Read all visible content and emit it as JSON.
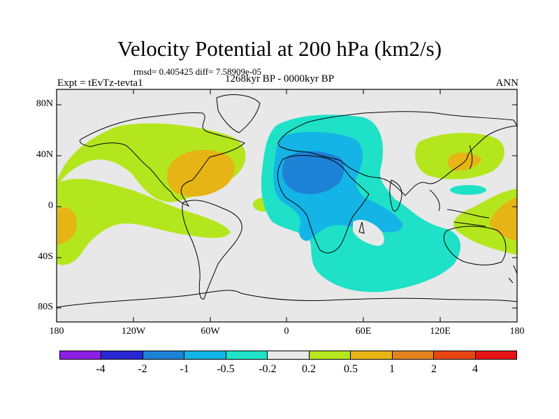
{
  "title": "Velocity Potential at 200 hPa (km2/s)",
  "stats": "rmsd= 0.405425 diff= 7.58909e-05",
  "experiment": "Expt = tEvTz-tevta1",
  "period": "1268kyr BP - 0000kyr BP",
  "season": "ANN",
  "y_ticks": [
    "80N",
    "40N",
    "0",
    "40S",
    "80S"
  ],
  "x_ticks": [
    "180",
    "120W",
    "60W",
    "0",
    "60E",
    "120E",
    "180"
  ],
  "colorbar": {
    "labels": [
      "-4",
      "-2",
      "-1",
      "-0.5",
      "-0.2",
      "0.2",
      "0.5",
      "1",
      "2",
      "4"
    ],
    "colors": [
      "#8c1ee6",
      "#2828d2",
      "#1e82d7",
      "#14b4e6",
      "#1ee1c8",
      "#e8e8e8",
      "#b4e61e",
      "#e6b414",
      "#e6821e",
      "#e64614",
      "#e61414"
    ]
  },
  "colors": {
    "land_bg": "#e8e8e8",
    "neg_02": "#1ee1c8",
    "neg_05": "#14b4e6",
    "neg_1": "#1e82d7",
    "pos_02": "#b4e61e",
    "pos_05": "#e6b414",
    "coast": "#000000"
  }
}
